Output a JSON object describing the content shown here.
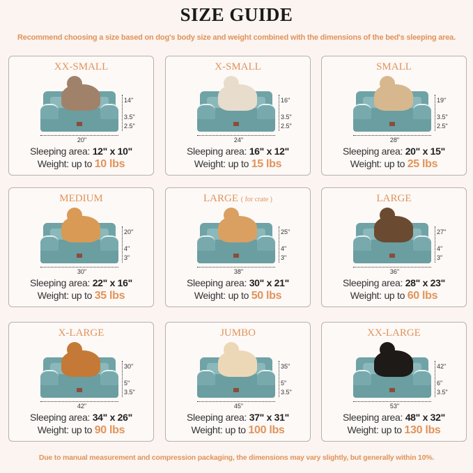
{
  "title": "SIZE GUIDE",
  "subtitle": "Recommend choosing a size based on dog's body size and weight combined with the dimensions of the bed's sleeping area.",
  "footer": "Due to manual measurement and compression packaging, the dimensions may vary slightly, but generally within 10%.",
  "labels": {
    "sleeping": "Sleeping area: ",
    "weight": "Weight: up to "
  },
  "colors": {
    "accent": "#e0935a",
    "bed": "#6fa3a6",
    "background": "#fbf4f0"
  },
  "sizes": [
    {
      "name": "XX-SMALL",
      "note": "",
      "width": "20\"",
      "height": "14\"",
      "cushion": "3.5\"",
      "base": "2.5\"",
      "area": "12\" x 10\"",
      "weight": "10 lbs",
      "pet": "cat",
      "petColor": "#a0826a"
    },
    {
      "name": "X-SMALL",
      "note": "",
      "width": "24\"",
      "height": "16\"",
      "cushion": "3.5\"",
      "base": "2.5\"",
      "area": "16\" x 12\"",
      "weight": "15 lbs",
      "pet": "dog",
      "petColor": "#e8dccd"
    },
    {
      "name": "SMALL",
      "note": "",
      "width": "28\"",
      "height": "19\"",
      "cushion": "3.5\"",
      "base": "2.5\"",
      "area": "20\" x 15\"",
      "weight": "25 lbs",
      "pet": "dog",
      "petColor": "#d7b78e"
    },
    {
      "name": "MEDIUM",
      "note": "",
      "width": "30\"",
      "height": "20\"",
      "cushion": "4\"",
      "base": "3\"",
      "area": "22\" x 16\"",
      "weight": "35 lbs",
      "pet": "dog",
      "petColor": "#d99a55"
    },
    {
      "name": "LARGE",
      "note": "( for crate )",
      "width": "38\"",
      "height": "25\"",
      "cushion": "4\"",
      "base": "3\"",
      "area": "30\" x 21\"",
      "weight": "50 lbs",
      "pet": "dog",
      "petColor": "#d9a061"
    },
    {
      "name": "LARGE",
      "note": "",
      "width": "36\"",
      "height": "27\"",
      "cushion": "4\"",
      "base": "3\"",
      "area": "28\" x 23\"",
      "weight": "60 lbs",
      "pet": "dog",
      "petColor": "#6b4a32"
    },
    {
      "name": "X-LARGE",
      "note": "",
      "width": "42\"",
      "height": "30\"",
      "cushion": "5\"",
      "base": "3.5\"",
      "area": "34\" x 26\"",
      "weight": "90 lbs",
      "pet": "dog",
      "petColor": "#c47a36"
    },
    {
      "name": "JUMBO",
      "note": "",
      "width": "45\"",
      "height": "35\"",
      "cushion": "5\"",
      "base": "3.5\"",
      "area": "37\" x 31\"",
      "weight": "100 lbs",
      "pet": "dog",
      "petColor": "#ecd8b6"
    },
    {
      "name": "XX-LARGE",
      "note": "",
      "width": "53\"",
      "height": "42\"",
      "cushion": "6\"",
      "base": "3.5\"",
      "area": "48\" x 32\"",
      "weight": "130 lbs",
      "pet": "dog",
      "petColor": "#1e1a18"
    }
  ]
}
